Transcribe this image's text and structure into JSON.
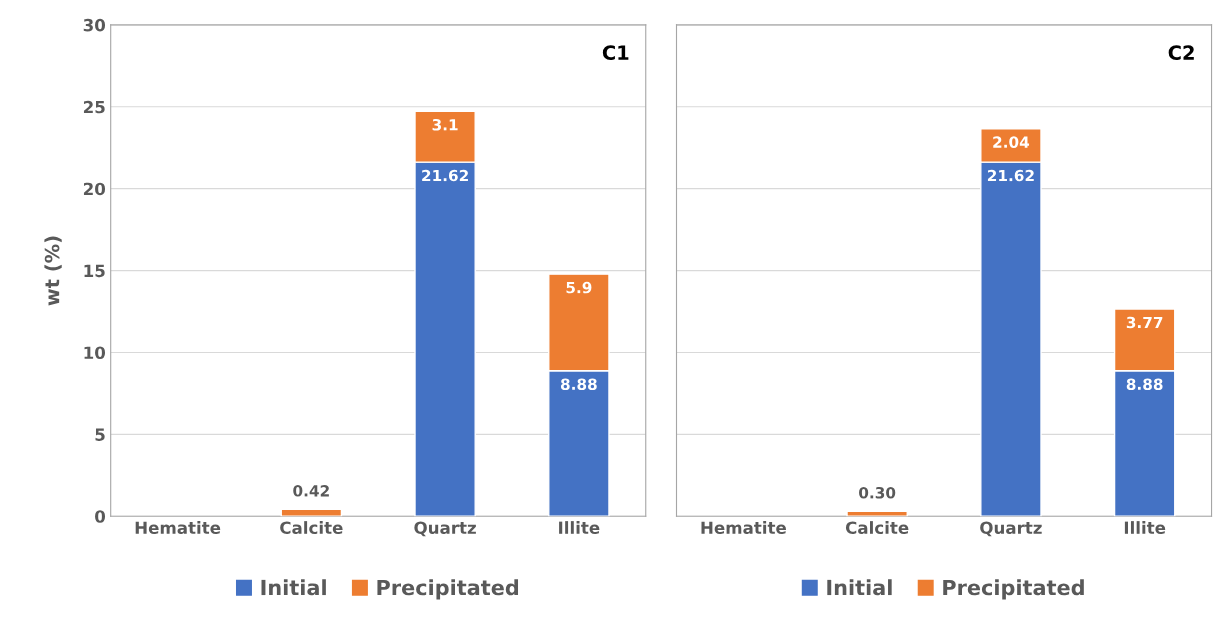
{
  "chart_data": [
    {
      "type": "bar",
      "title": "C1",
      "ylabel": "wt (%)",
      "categories": [
        "Hematite",
        "Calcite",
        "Quartz",
        "Illite"
      ],
      "stacked": true,
      "ylim": [
        0,
        30
      ],
      "yticks": [
        0,
        5,
        10,
        15,
        20,
        25,
        30
      ],
      "grid": "y",
      "legend": "bottom",
      "series": [
        {
          "name": "Initial",
          "color": "#4472c4",
          "values": [
            null,
            null,
            21.62,
            8.88
          ],
          "value_labels": [
            null,
            null,
            "21.62",
            "8.88"
          ]
        },
        {
          "name": "Precipitated",
          "color": "#ed7d31",
          "values": [
            null,
            0.42,
            3.1,
            5.9
          ],
          "value_labels": [
            null,
            "0.42",
            "3.1",
            "5.9"
          ]
        }
      ]
    },
    {
      "type": "bar",
      "title": "C2",
      "categories": [
        "Hematite",
        "Calcite",
        "Quartz",
        "Illite"
      ],
      "stacked": true,
      "ylim": [
        0,
        30
      ],
      "yticks": [
        0,
        5,
        10,
        15,
        20,
        25,
        30
      ],
      "grid": "y",
      "legend": "bottom",
      "tick_labels": "x",
      "series": [
        {
          "name": "Initial",
          "color": "#4472c4",
          "values": [
            null,
            null,
            21.62,
            8.88
          ],
          "value_labels": [
            null,
            null,
            "21.62",
            "8.88"
          ]
        },
        {
          "name": "Precipitated",
          "color": "#ed7d31",
          "values": [
            null,
            0.3,
            2.04,
            3.77
          ],
          "value_labels": [
            null,
            "0.30",
            "2.04",
            "3.77"
          ]
        }
      ]
    }
  ]
}
